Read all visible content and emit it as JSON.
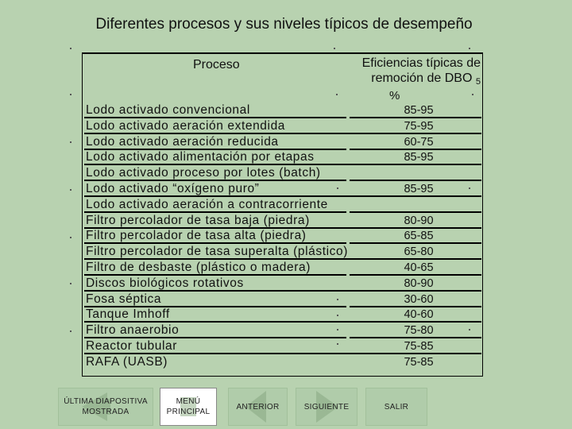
{
  "title": "Diferentes procesos y sus niveles típicos de desempeño",
  "table": {
    "header_process": "Proceso",
    "header_eff_line1": "Eficiencias típicas de",
    "header_eff_line2": "remoción de DBO",
    "header_eff_sub": "5",
    "header_unit": "%",
    "rows": [
      {
        "process": "Lodo activado convencional",
        "value": "85-95"
      },
      {
        "process": "Lodo activado aeración extendida",
        "value": "75-95"
      },
      {
        "process": "Lodo activado aeración reducida",
        "value": "60-75"
      },
      {
        "process": "Lodo activado alimentación por etapas",
        "value": "85-95"
      },
      {
        "process": "Lodo activado proceso por lotes (batch)",
        "value": ""
      },
      {
        "process": "Lodo activado “oxígeno puro”",
        "value": "85-95"
      },
      {
        "process": "Lodo activado aeración a contracorriente",
        "value": ""
      },
      {
        "process": "Filtro percolador de tasa baja (piedra)",
        "value": "80-90"
      },
      {
        "process": "Filtro percolador de tasa alta (piedra)",
        "value": "65-85"
      },
      {
        "process": "Filtro percolador de tasa superalta (plástico)",
        "value": "65-80"
      },
      {
        "process": "Filtro de desbaste (plástico o madera)",
        "value": "40-65"
      },
      {
        "process": "Discos biológicos rotativos",
        "value": "80-90"
      },
      {
        "process": "Fosa séptica",
        "value": "30-60"
      },
      {
        "process": "Tanque Imhoff",
        "value": "40-60"
      },
      {
        "process": "Filtro anaerobio",
        "value": "75-80"
      },
      {
        "process": "Reactor tubular",
        "value": "75-85"
      },
      {
        "process": "RAFA (UASB)",
        "value": "75-85"
      }
    ]
  },
  "nav": {
    "last_slide": "ÚLTIMA DIAPOSITIVA MOSTRADA",
    "menu": "MENÚ PRINCIPAL",
    "previous": "ANTERIOR",
    "next": "SIGUIENTE",
    "exit": "SALIR"
  },
  "colors": {
    "background": "#b8d2b0",
    "button": "#b0ccaa",
    "arrow": "#9ab894"
  }
}
